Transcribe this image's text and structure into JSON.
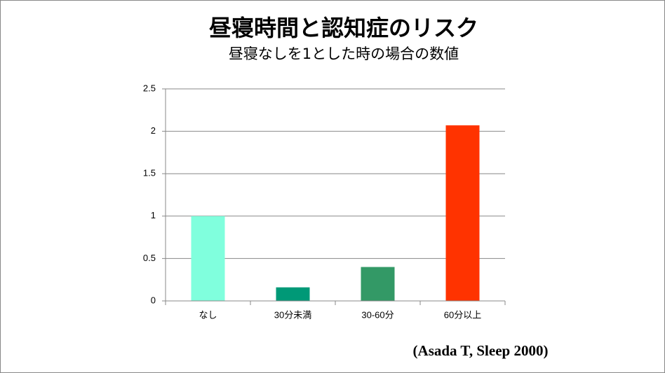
{
  "chart_data": {
    "type": "bar",
    "title": "昼寝時間と認知症のリスク",
    "subtitle": "昼寝なしを1とした時の場合の数値",
    "categories": [
      "なし",
      "30分未満",
      "30-60分",
      "60分以上"
    ],
    "values": [
      1.0,
      0.16,
      0.4,
      2.07
    ],
    "colors": [
      "#80ffdd",
      "#009977",
      "#339966",
      "#ff3300"
    ],
    "ylim": [
      0,
      2.5
    ],
    "yticks": [
      0,
      0.5,
      1,
      1.5,
      2,
      2.5
    ],
    "grid": true,
    "annotation": "(Asada T, Sleep 2000)"
  }
}
